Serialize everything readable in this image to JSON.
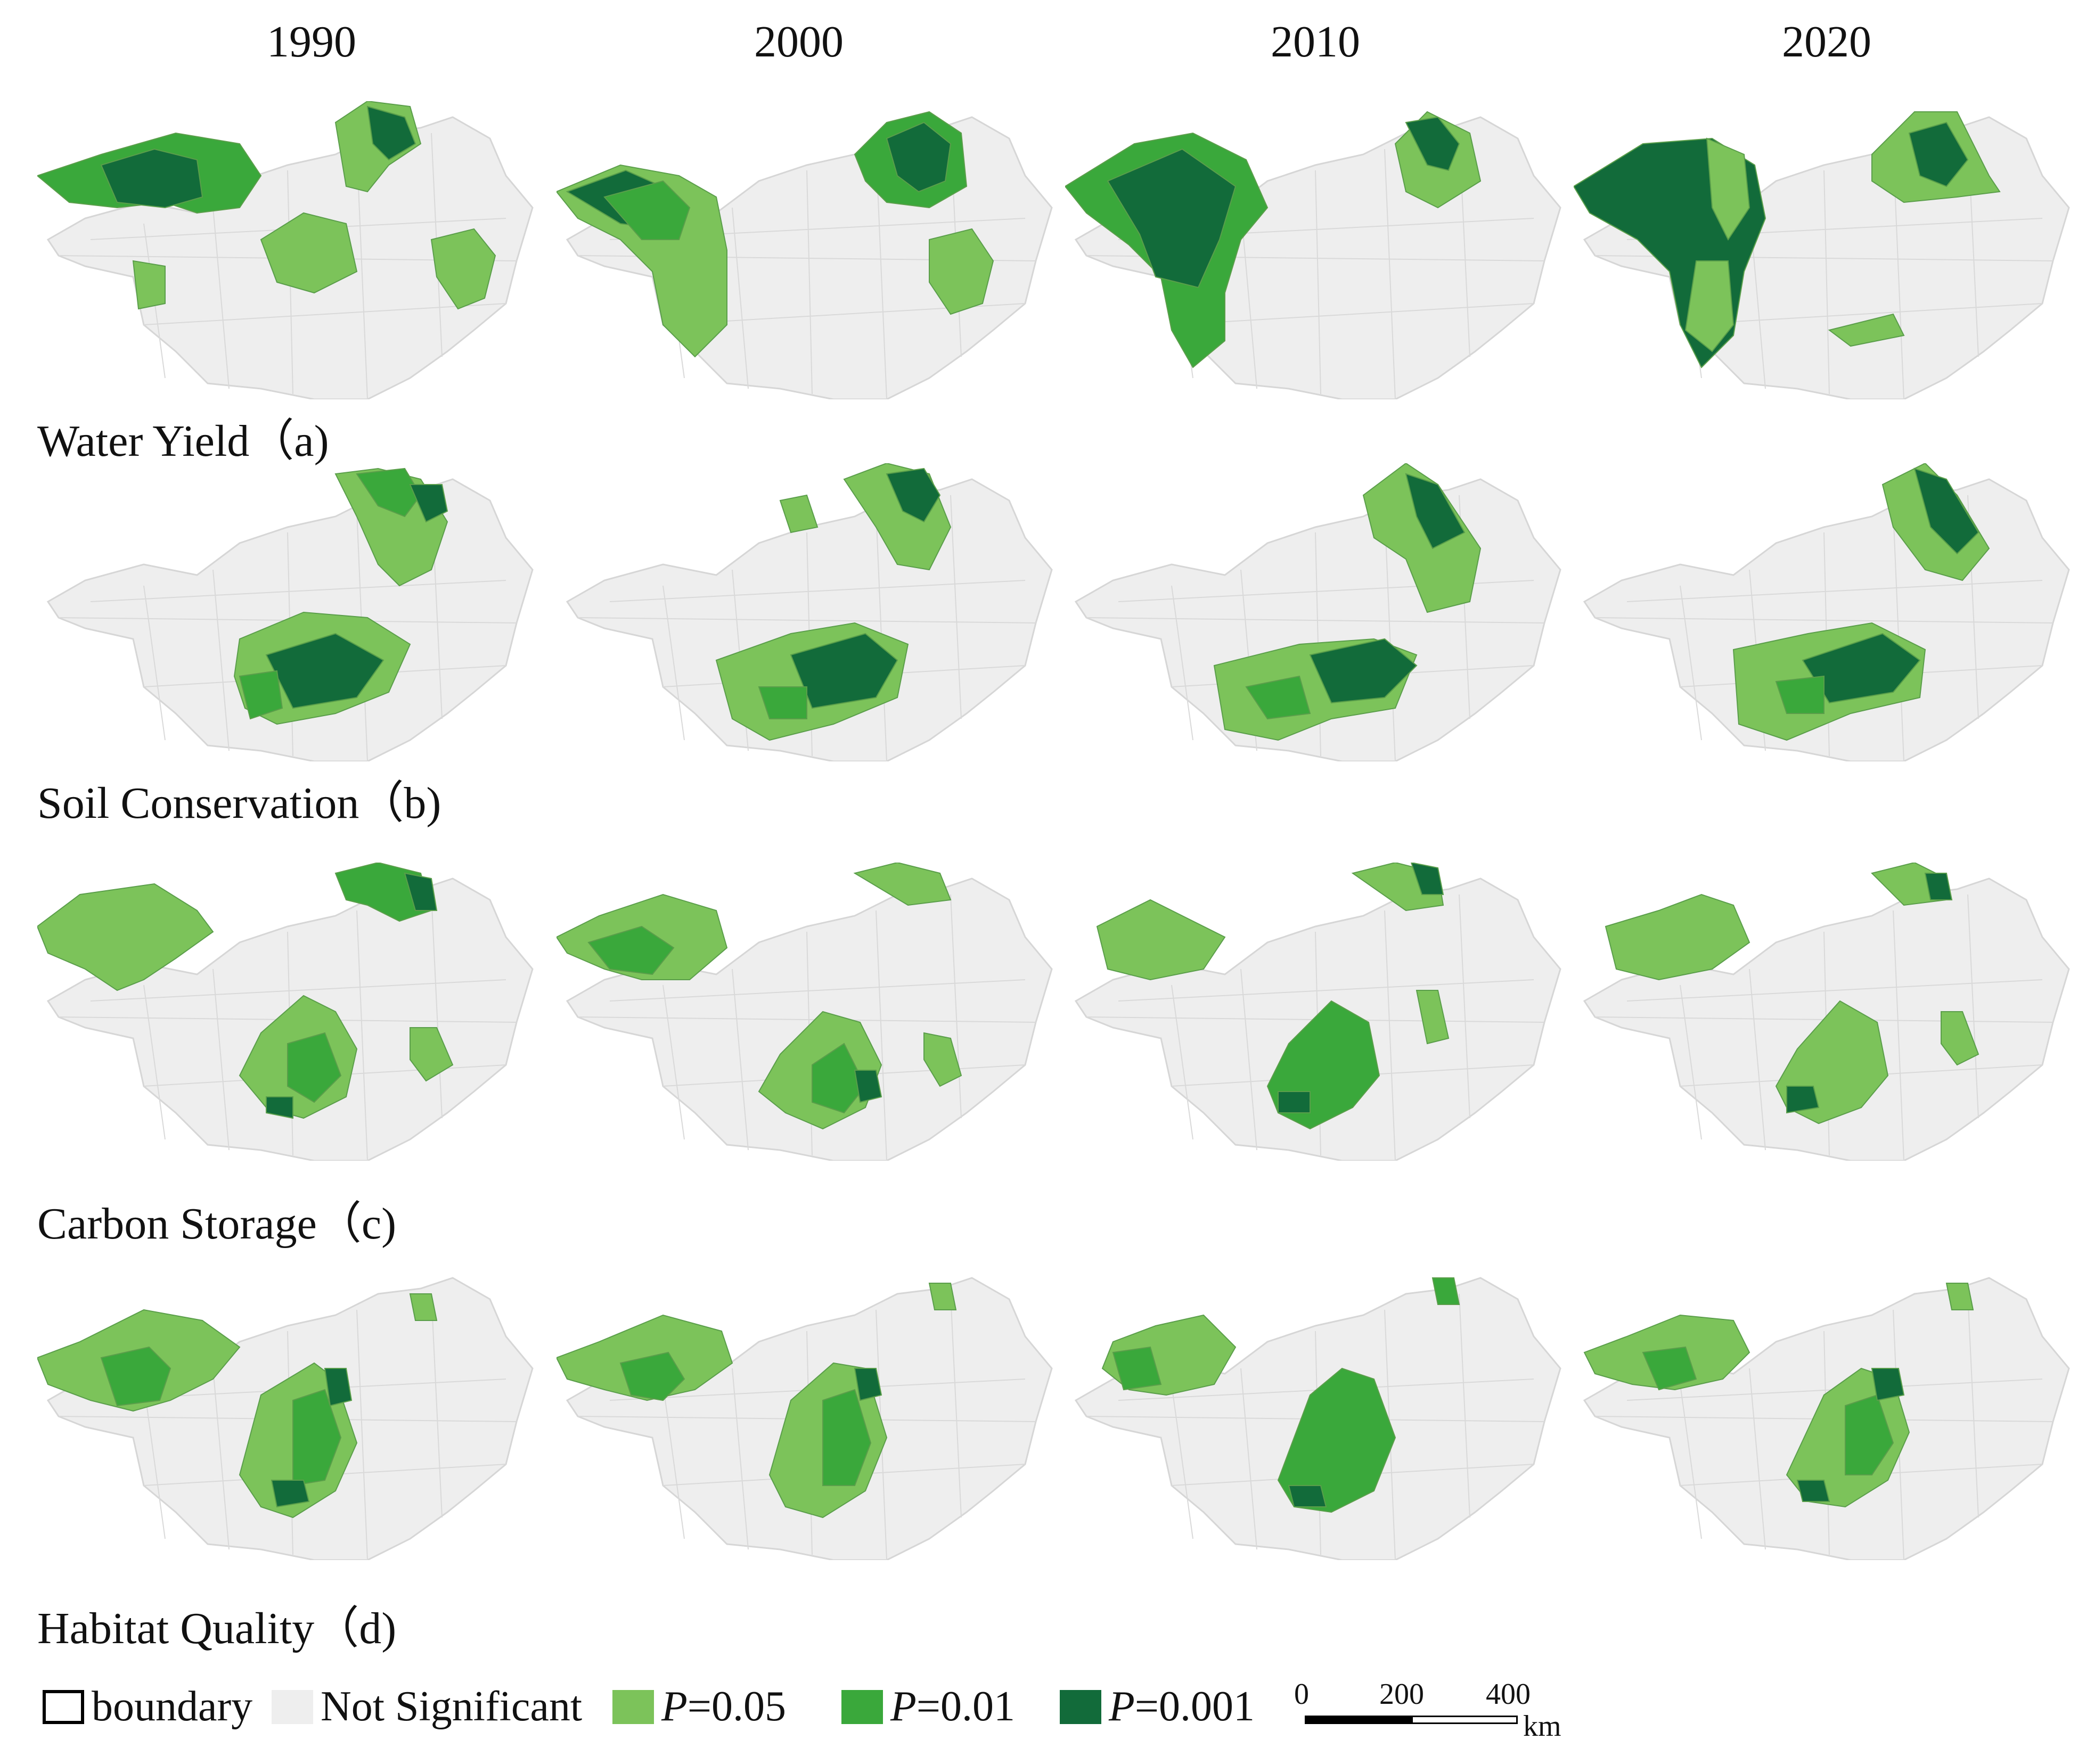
{
  "columns": [
    "1990",
    "2000",
    "2010",
    "2020"
  ],
  "rows": [
    {
      "label": "Water Yield（a)"
    },
    {
      "label": "Soil Conservation（b)"
    },
    {
      "label": "Carbon Storage（c)"
    },
    {
      "label": "Habitat Quality（d)"
    }
  ],
  "colors": {
    "not_significant": "#eeeeee",
    "p005": "#7cc35a",
    "p001_light": "#3aa83b",
    "p0001": "#126b3a",
    "boundary": "#000000"
  },
  "legend": {
    "boundary": "boundary",
    "not_significant": "Not Significant",
    "p005_prefix": "P",
    "p005_value": "=0.05",
    "p001_prefix": "P",
    "p001_value": "=0.01",
    "p0001_prefix": "P",
    "p0001_value": "=0.001"
  },
  "scale": {
    "ticks": [
      "0",
      "200",
      "400"
    ],
    "unit": "km"
  }
}
